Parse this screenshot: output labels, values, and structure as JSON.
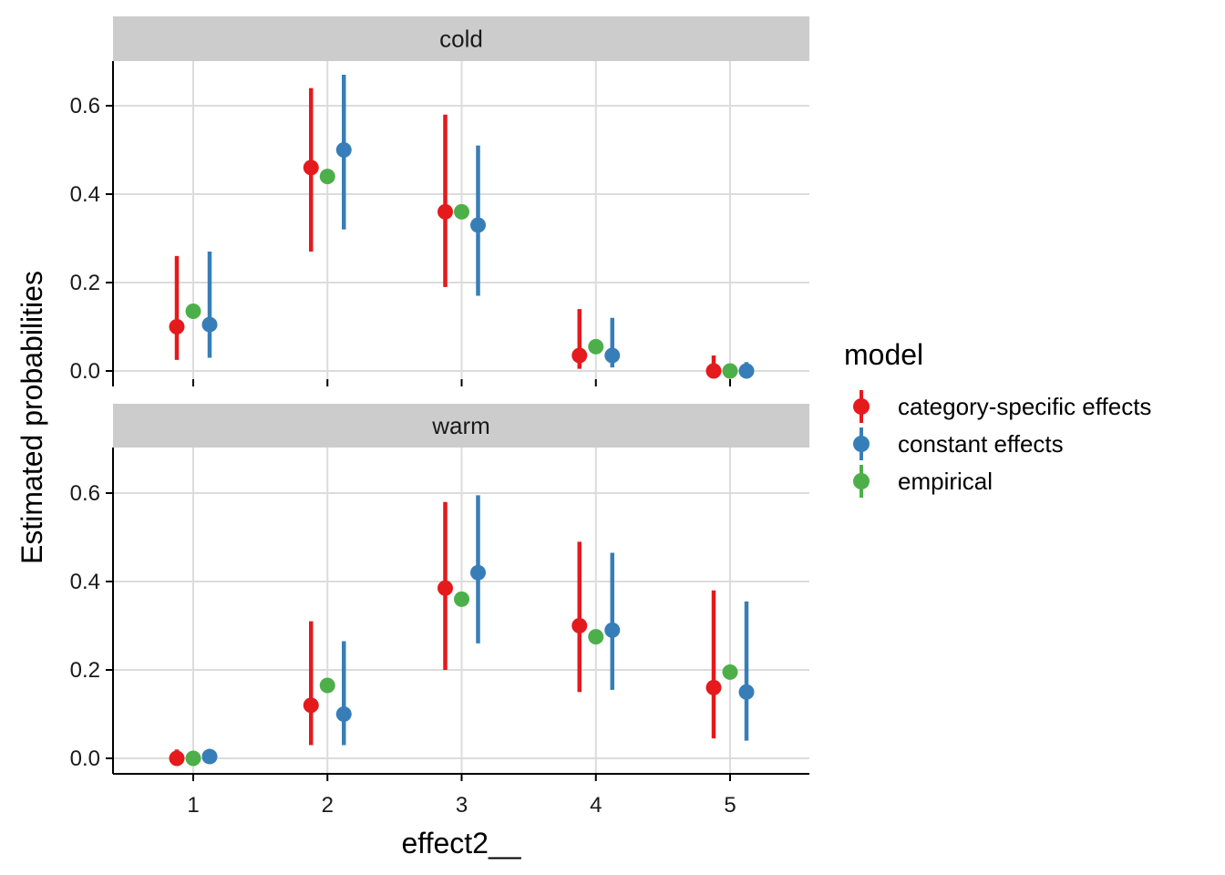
{
  "chart_data": {
    "type": "scatter",
    "subtype": "pointrange",
    "facet_variable_values": [
      "cold",
      "warm"
    ],
    "xlabel": "effect2__",
    "ylabel": "Estimated probabilities",
    "x_categories": [
      "1",
      "2",
      "3",
      "4",
      "5"
    ],
    "ylim": [
      -0.03,
      0.7
    ],
    "y_ticks": [
      0.0,
      0.2,
      0.4,
      0.6
    ],
    "y_tick_labels": [
      "0.0",
      "0.2",
      "0.4",
      "0.6"
    ],
    "grid": true,
    "legend": {
      "title": "model",
      "placement": "right",
      "entries": [
        "category-specific effects",
        "constant effects",
        "empirical"
      ]
    },
    "colors": {
      "category-specific effects": "#E41A1C",
      "constant effects": "#377EB8",
      "empirical": "#4DAF4A",
      "strip_background": "#cccccc",
      "grid": "#dcdcdc"
    },
    "panels": [
      {
        "strip": "cold",
        "series": [
          {
            "name": "category-specific effects",
            "x": [
              1,
              2,
              3,
              4,
              5
            ],
            "y": [
              0.1,
              0.46,
              0.36,
              0.035,
              0.0
            ],
            "lower": [
              0.025,
              0.27,
              0.19,
              0.005,
              0.0
            ],
            "upper": [
              0.26,
              0.64,
              0.58,
              0.14,
              0.035
            ]
          },
          {
            "name": "constant effects",
            "x": [
              1,
              2,
              3,
              4,
              5
            ],
            "y": [
              0.105,
              0.5,
              0.33,
              0.035,
              0.0
            ],
            "lower": [
              0.03,
              0.32,
              0.17,
              0.008,
              0.0
            ],
            "upper": [
              0.27,
              0.67,
              0.51,
              0.12,
              0.02
            ]
          },
          {
            "name": "empirical",
            "x": [
              1,
              2,
              3,
              4,
              5
            ],
            "y": [
              0.135,
              0.44,
              0.36,
              0.055,
              0.0
            ],
            "lower": [
              0.135,
              0.44,
              0.36,
              0.055,
              0.0
            ],
            "upper": [
              0.135,
              0.44,
              0.36,
              0.055,
              0.0
            ]
          }
        ]
      },
      {
        "strip": "warm",
        "series": [
          {
            "name": "category-specific effects",
            "x": [
              1,
              2,
              3,
              4,
              5
            ],
            "y": [
              0.0,
              0.12,
              0.385,
              0.3,
              0.16
            ],
            "lower": [
              0.0,
              0.03,
              0.2,
              0.15,
              0.045
            ],
            "upper": [
              0.02,
              0.31,
              0.58,
              0.49,
              0.38
            ]
          },
          {
            "name": "constant effects",
            "x": [
              1,
              2,
              3,
              4,
              5
            ],
            "y": [
              0.004,
              0.1,
              0.42,
              0.29,
              0.15
            ],
            "lower": [
              0.0,
              0.03,
              0.26,
              0.155,
              0.04
            ],
            "upper": [
              0.015,
              0.265,
              0.595,
              0.465,
              0.355
            ]
          },
          {
            "name": "empirical",
            "x": [
              1,
              2,
              3,
              4,
              5
            ],
            "y": [
              0.0,
              0.165,
              0.36,
              0.275,
              0.195
            ],
            "lower": [
              0.0,
              0.165,
              0.36,
              0.275,
              0.195
            ],
            "upper": [
              0.0,
              0.165,
              0.36,
              0.275,
              0.195
            ]
          }
        ]
      }
    ]
  }
}
